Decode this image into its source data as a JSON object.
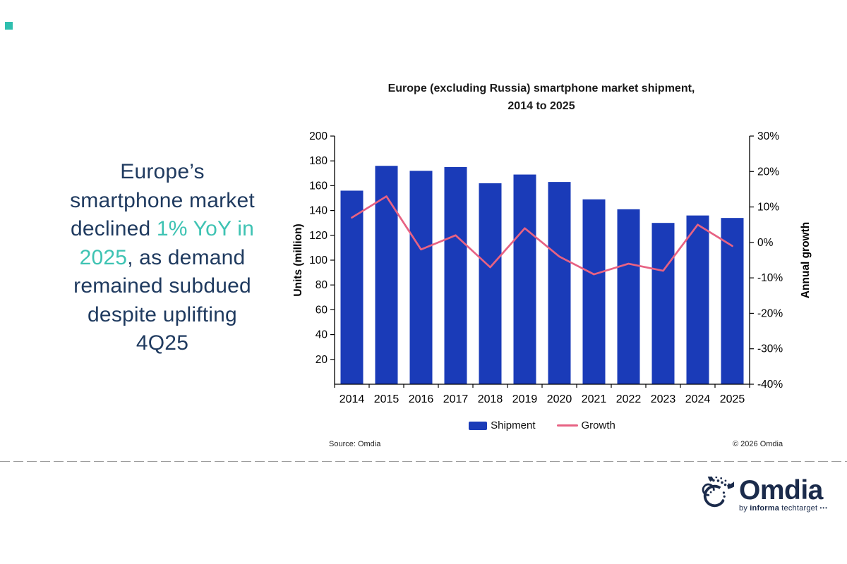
{
  "accent_color": "#2FBFAF",
  "headline": {
    "color": "#1F3A5F",
    "highlight_color": "#3EC3B3",
    "segments": [
      {
        "text": "Europe’s\nsmartphone market\ndeclined ",
        "highlight": false
      },
      {
        "text": "1% YoY in\n2025",
        "highlight": true
      },
      {
        "text": ", as demand\nremained subdued\ndespite uplifting\n4Q25",
        "highlight": false
      }
    ]
  },
  "chart": {
    "title_line1": "Europe (excluding Russia) smartphone market shipment,",
    "title_line2": "2014 to 2025",
    "source": "Source: Omdia",
    "copyright": "© 2026 Omdia"
  },
  "chart_data": {
    "type": "bar+line combo",
    "title": "Europe (excluding Russia) smartphone market shipment, 2014 to 2025",
    "categories": [
      "2014",
      "2015",
      "2016",
      "2017",
      "2018",
      "2019",
      "2020",
      "2021",
      "2022",
      "2023",
      "2024",
      "2025"
    ],
    "series": [
      {
        "name": "Shipment",
        "type": "bar",
        "axis": "left",
        "color": "#1A3BB8",
        "values": [
          156,
          176,
          172,
          175,
          162,
          169,
          163,
          149,
          141,
          130,
          136,
          134
        ]
      },
      {
        "name": "Growth",
        "type": "line",
        "axis": "right",
        "color": "#E76283",
        "values": [
          7,
          13,
          -2,
          2,
          -7,
          4,
          -4,
          -9,
          -6,
          -8,
          5,
          -1
        ]
      }
    ],
    "left_axis": {
      "label": "Units (million)",
      "min": 0,
      "max": 200,
      "tick_step": 20,
      "tick_values": [
        200,
        180,
        160,
        140,
        120,
        100,
        80,
        60,
        40,
        20
      ],
      "tick_labels": [
        "200",
        "180",
        "160",
        "140",
        "120",
        "100",
        "80",
        "60",
        "40",
        "20"
      ]
    },
    "right_axis": {
      "label": "Annual growth",
      "min": -40,
      "max": 30,
      "tick_step": 10,
      "tick_values": [
        30,
        20,
        10,
        0,
        -10,
        -20,
        -30,
        -40
      ],
      "tick_labels": [
        "30%",
        "20%",
        "10%",
        "0%",
        "-10%",
        "-20%",
        "-30%",
        "-40%"
      ]
    },
    "legend_position": "bottom",
    "grid": false
  },
  "footer": {
    "wordmark": "Omdia",
    "tagline_by": "by ",
    "tagline_brand": "informa",
    "tagline_suffix": " techtarget ",
    "tagline_dots": "•••",
    "navy": "#1B2B4B"
  }
}
